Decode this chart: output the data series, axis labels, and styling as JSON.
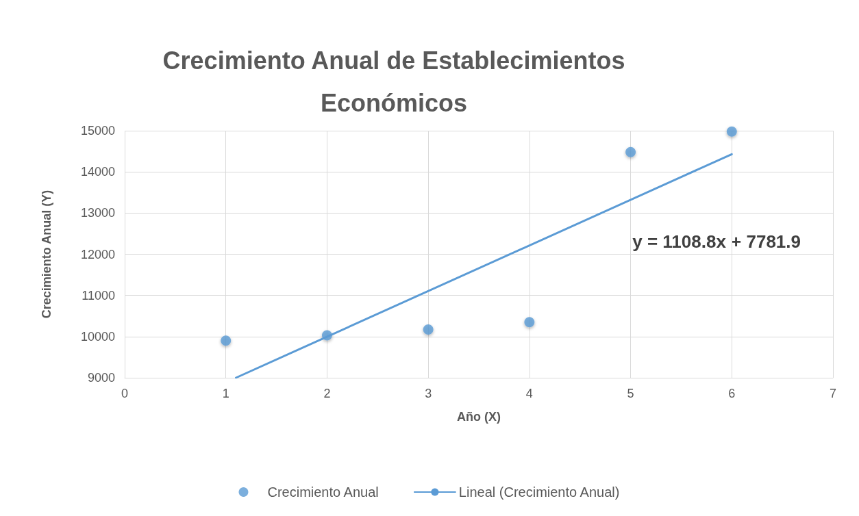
{
  "chart_data": {
    "type": "scatter",
    "title": "Crecimiento Anual de Establecimientos\nEconómicos",
    "xlabel": "Año (X)",
    "ylabel": "Crecimiento Anual (Y)",
    "x": [
      1,
      2,
      3,
      4,
      5,
      6
    ],
    "series": [
      {
        "name": "Crecimiento Anual",
        "color": "#5b9bd5",
        "values": [
          9900,
          10030,
          10170,
          10350,
          14480,
          14980
        ]
      },
      {
        "name": "Lineal (Crecimiento Anual)",
        "type": "line",
        "color": "#5b9bd5",
        "x": [
          1.1,
          6
        ],
        "values": [
          9000,
          14430
        ],
        "marker": "none"
      }
    ],
    "xlim": [
      0,
      7
    ],
    "xticks": [
      0,
      1,
      2,
      3,
      4,
      5,
      6,
      7
    ],
    "ylim": [
      9000,
      15000
    ],
    "yticks": [
      9000,
      10000,
      11000,
      12000,
      13000,
      14000,
      15000
    ],
    "grid": true,
    "legend": "bottom",
    "marker": "circle",
    "line_style": "solid",
    "annotations": [
      "y = 1108.8x + 7781.9"
    ]
  }
}
